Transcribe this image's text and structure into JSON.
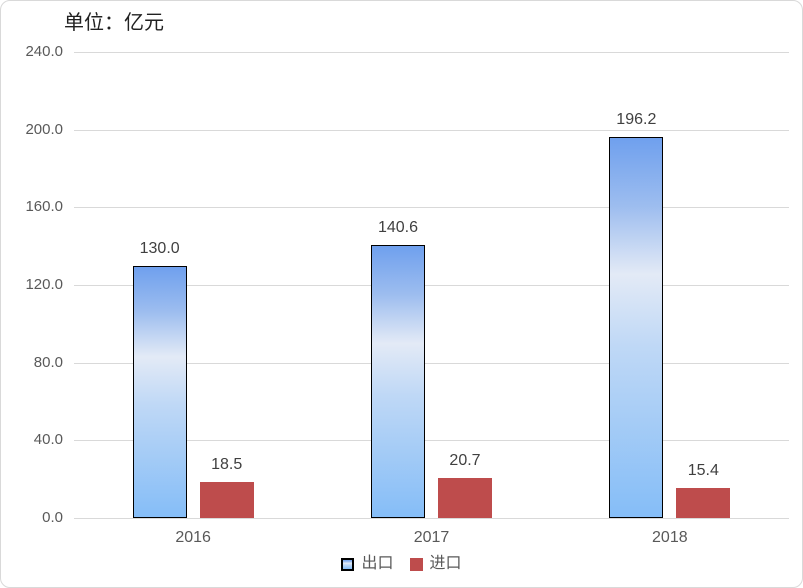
{
  "unit_label": "单位：亿元",
  "chart_data": {
    "type": "bar",
    "title": "单位：亿元",
    "categories": [
      "2016",
      "2017",
      "2018"
    ],
    "series": [
      {
        "name": "出口",
        "values": [
          130.0,
          140.6,
          196.2
        ],
        "labels": [
          "130.0",
          "140.6",
          "196.2"
        ],
        "fill_gradient_top": "#6FA0EE",
        "fill_gradient_light": "#E3EAF6",
        "fill_gradient_bottom": "#85BDF7",
        "border_color": "#000000"
      },
      {
        "name": "进口",
        "values": [
          18.5,
          20.7,
          15.4
        ],
        "labels": [
          "18.5",
          "20.7",
          "15.4"
        ],
        "fill": "#BE4C4C"
      }
    ],
    "ylim": [
      0,
      240
    ],
    "y_tick_step": 40,
    "y_tick_labels": [
      "0.0",
      "40.0",
      "80.0",
      "120.0",
      "160.0",
      "200.0",
      "240.0"
    ],
    "xlabel": "",
    "ylabel": "",
    "grid": true,
    "legend_position": "bottom",
    "colors": {
      "gridline": "#D9D9D9",
      "axis_text": "#595959",
      "value_label_text": "#404040",
      "title_text": "#212121",
      "chart_border": "#D9D9D9"
    }
  }
}
